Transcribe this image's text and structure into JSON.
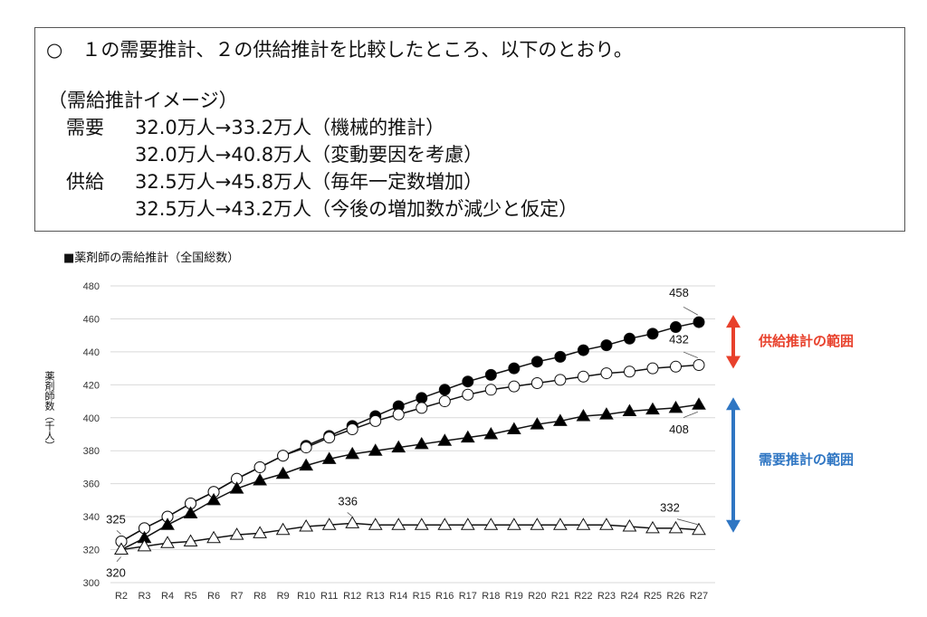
{
  "summary": {
    "intro": "○　１の需要推計、２の供給推計を比較したところ、以下のとおり。",
    "image_heading": "（需給推計イメージ）",
    "rows": [
      {
        "label": "需要",
        "value": "32.0万人→33.2万人（機械的推計）"
      },
      {
        "label": "",
        "value": "32.0万人→40.8万人（変動要因を考慮）"
      },
      {
        "label": "供給",
        "value": "32.5万人→45.8万人（毎年一定数増加）"
      },
      {
        "label": "",
        "value": "32.5万人→43.2万人（今後の増加数が減少と仮定）"
      }
    ]
  },
  "chart_data": {
    "type": "line",
    "title": "■薬剤師の需給推計（全国総数）",
    "xlabel": "",
    "ylabel": "薬剤師数（千人）",
    "ylim": [
      300,
      480
    ],
    "yticks": [
      "300",
      "320",
      "340",
      "360",
      "380",
      "400",
      "420",
      "440",
      "460",
      "480"
    ],
    "grid": true,
    "categories": [
      "R2",
      "R3",
      "R4",
      "R5",
      "R6",
      "R7",
      "R8",
      "R9",
      "R10",
      "R11",
      "R12",
      "R13",
      "R14",
      "R15",
      "R16",
      "R17",
      "R18",
      "R19",
      "R20",
      "R21",
      "R22",
      "R23",
      "R24",
      "R25",
      "R26",
      "R27"
    ],
    "series": [
      {
        "name": "供給（毎年一定数増加）",
        "marker": "filled-circle",
        "values": [
          325,
          333,
          340,
          348,
          355,
          363,
          370,
          377,
          383,
          389,
          395,
          401,
          407,
          412,
          417,
          422,
          426,
          430,
          434,
          437,
          441,
          444,
          448,
          451,
          455,
          458
        ]
      },
      {
        "name": "供給（増加数減少）",
        "marker": "open-circle",
        "values": [
          325,
          333,
          340,
          348,
          355,
          363,
          370,
          377,
          382,
          388,
          393,
          398,
          402,
          406,
          410,
          414,
          417,
          419,
          421,
          423,
          425,
          427,
          428,
          430,
          431,
          432
        ]
      },
      {
        "name": "需要（変動要因考慮）",
        "marker": "filled-triangle",
        "values": [
          320,
          327,
          335,
          342,
          350,
          357,
          362,
          366,
          371,
          375,
          378,
          380,
          382,
          384,
          386,
          388,
          390,
          393,
          396,
          398,
          401,
          402,
          404,
          405,
          406,
          408
        ]
      },
      {
        "name": "需要（機械的推計）",
        "marker": "open-triangle",
        "values": [
          320,
          322,
          324,
          325,
          327,
          329,
          330,
          332,
          334,
          335,
          336,
          335,
          335,
          335,
          335,
          335,
          335,
          335,
          335,
          335,
          335,
          335,
          334,
          333,
          333,
          332
        ]
      }
    ],
    "data_labels": [
      {
        "text": "325",
        "category": "R2",
        "value": 325
      },
      {
        "text": "320",
        "category": "R2",
        "value": 320
      },
      {
        "text": "336",
        "category": "R12",
        "value": 336
      },
      {
        "text": "458",
        "category": "R27",
        "value": 458
      },
      {
        "text": "432",
        "category": "R27",
        "value": 432
      },
      {
        "text": "408",
        "category": "R27",
        "value": 408
      },
      {
        "text": "332",
        "category": "R27",
        "value": 332
      }
    ],
    "annotations": [
      {
        "text": "供給推計の範囲",
        "color": "#e8412c",
        "range": [
          432,
          458
        ]
      },
      {
        "text": "需要推計の範囲",
        "color": "#2f76c3",
        "range": [
          332,
          408
        ]
      }
    ]
  }
}
